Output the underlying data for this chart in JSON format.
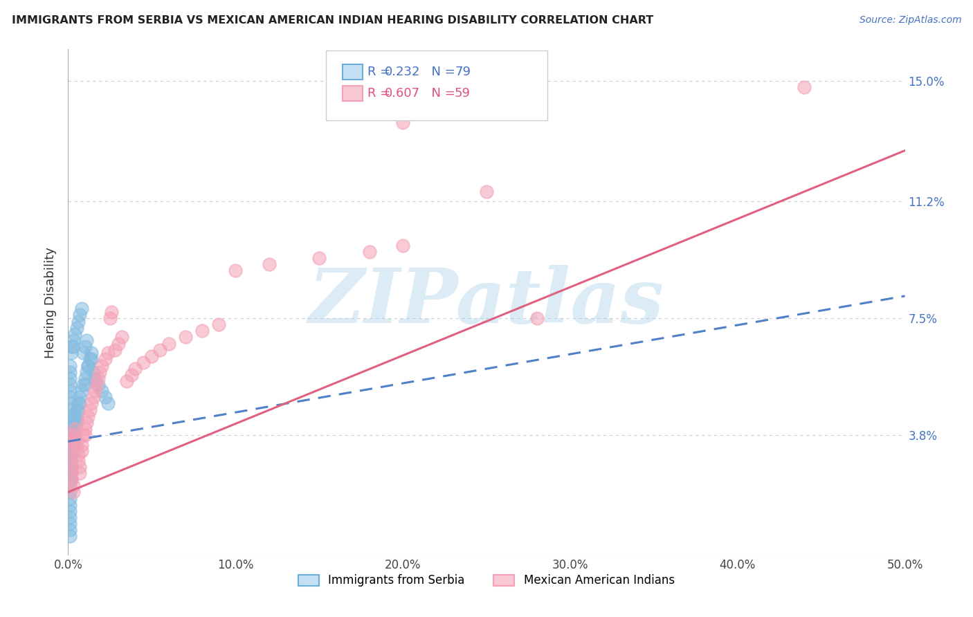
{
  "title": "IMMIGRANTS FROM SERBIA VS MEXICAN AMERICAN INDIAN HEARING DISABILITY CORRELATION CHART",
  "source": "Source: ZipAtlas.com",
  "ylabel_label": "Hearing Disability",
  "legend_label1": "Immigrants from Serbia",
  "legend_label2": "Mexican American Indians",
  "R1": 0.232,
  "N1": 79,
  "R2": 0.607,
  "N2": 59,
  "color1": "#85bce0",
  "color2": "#f4a0b5",
  "line1_color": "#5080c8",
  "line2_color": "#e06080",
  "xlim": [
    0.0,
    0.5
  ],
  "ylim": [
    0.0,
    0.16
  ],
  "xtick_labels": [
    "0.0%",
    "10.0%",
    "20.0%",
    "30.0%",
    "40.0%",
    "50.0%"
  ],
  "xtick_values": [
    0.0,
    0.1,
    0.2,
    0.3,
    0.4,
    0.5
  ],
  "ytick_labels": [
    "3.8%",
    "7.5%",
    "11.2%",
    "15.0%"
  ],
  "ytick_values": [
    0.038,
    0.075,
    0.112,
    0.15
  ],
  "line1_x0": 0.0,
  "line1_y0": 0.036,
  "line1_x1": 0.5,
  "line1_y1": 0.082,
  "line2_x0": 0.0,
  "line2_y0": 0.02,
  "line2_x1": 0.5,
  "line2_y1": 0.128,
  "watermark": "ZIPatlas",
  "watermark_color": "#a8d0ec",
  "background_color": "#ffffff",
  "serbia_x": [
    0.001,
    0.001,
    0.001,
    0.001,
    0.001,
    0.001,
    0.001,
    0.001,
    0.001,
    0.001,
    0.001,
    0.001,
    0.001,
    0.001,
    0.001,
    0.001,
    0.001,
    0.002,
    0.002,
    0.002,
    0.002,
    0.002,
    0.002,
    0.002,
    0.002,
    0.002,
    0.003,
    0.003,
    0.003,
    0.003,
    0.003,
    0.004,
    0.004,
    0.004,
    0.004,
    0.005,
    0.005,
    0.005,
    0.006,
    0.006,
    0.007,
    0.007,
    0.008,
    0.009,
    0.01,
    0.01,
    0.011,
    0.012,
    0.013,
    0.014,
    0.001,
    0.001,
    0.001,
    0.001,
    0.001,
    0.001,
    0.001,
    0.001,
    0.002,
    0.002,
    0.003,
    0.003,
    0.004,
    0.005,
    0.006,
    0.007,
    0.008,
    0.009,
    0.01,
    0.011,
    0.012,
    0.014,
    0.015,
    0.016,
    0.018,
    0.02,
    0.022,
    0.024,
    0.002
  ],
  "serbia_y": [
    0.038,
    0.036,
    0.034,
    0.032,
    0.03,
    0.028,
    0.026,
    0.024,
    0.022,
    0.02,
    0.018,
    0.016,
    0.014,
    0.012,
    0.01,
    0.008,
    0.006,
    0.04,
    0.038,
    0.036,
    0.034,
    0.032,
    0.03,
    0.028,
    0.026,
    0.024,
    0.042,
    0.04,
    0.038,
    0.036,
    0.034,
    0.044,
    0.042,
    0.04,
    0.038,
    0.046,
    0.044,
    0.042,
    0.048,
    0.046,
    0.05,
    0.048,
    0.052,
    0.054,
    0.056,
    0.054,
    0.058,
    0.06,
    0.062,
    0.064,
    0.06,
    0.058,
    0.056,
    0.054,
    0.052,
    0.05,
    0.048,
    0.046,
    0.066,
    0.064,
    0.068,
    0.066,
    0.07,
    0.072,
    0.074,
    0.076,
    0.078,
    0.064,
    0.066,
    0.068,
    0.06,
    0.062,
    0.058,
    0.056,
    0.054,
    0.052,
    0.05,
    0.048,
    0.044
  ],
  "mexican_x": [
    0.001,
    0.001,
    0.001,
    0.001,
    0.001,
    0.002,
    0.002,
    0.002,
    0.003,
    0.003,
    0.004,
    0.004,
    0.005,
    0.005,
    0.006,
    0.006,
    0.007,
    0.007,
    0.008,
    0.008,
    0.009,
    0.01,
    0.01,
    0.011,
    0.012,
    0.013,
    0.014,
    0.015,
    0.016,
    0.017,
    0.018,
    0.019,
    0.02,
    0.022,
    0.024,
    0.025,
    0.026,
    0.028,
    0.03,
    0.032,
    0.035,
    0.038,
    0.04,
    0.045,
    0.05,
    0.055,
    0.06,
    0.07,
    0.08,
    0.09,
    0.1,
    0.12,
    0.15,
    0.18,
    0.2,
    0.25,
    0.28,
    0.44,
    0.2
  ],
  "mexican_y": [
    0.038,
    0.036,
    0.034,
    0.032,
    0.03,
    0.028,
    0.026,
    0.024,
    0.022,
    0.02,
    0.04,
    0.038,
    0.036,
    0.034,
    0.032,
    0.03,
    0.028,
    0.026,
    0.035,
    0.033,
    0.038,
    0.04,
    0.038,
    0.042,
    0.044,
    0.046,
    0.048,
    0.05,
    0.052,
    0.054,
    0.056,
    0.058,
    0.06,
    0.062,
    0.064,
    0.075,
    0.077,
    0.065,
    0.067,
    0.069,
    0.055,
    0.057,
    0.059,
    0.061,
    0.063,
    0.065,
    0.067,
    0.069,
    0.071,
    0.073,
    0.09,
    0.092,
    0.094,
    0.096,
    0.098,
    0.115,
    0.075,
    0.148,
    0.137
  ]
}
